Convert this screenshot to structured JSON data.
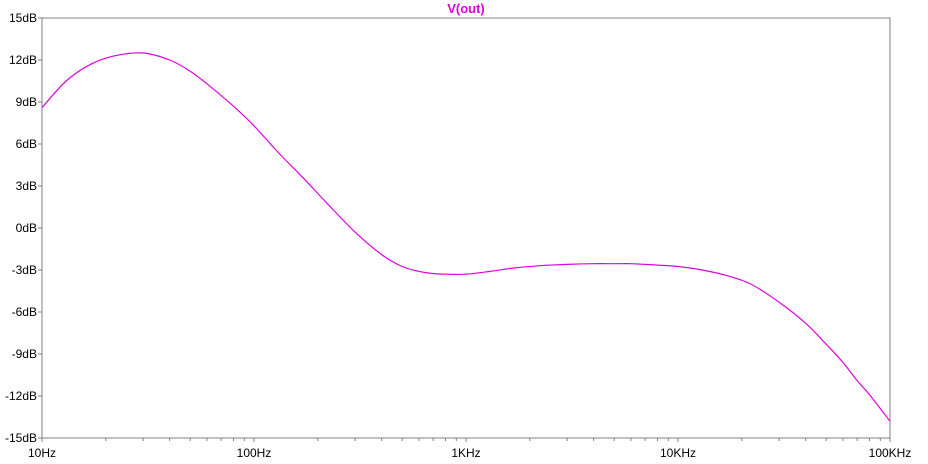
{
  "chart_data": {
    "type": "line",
    "title": "V(out)",
    "xlabel": "",
    "ylabel": "",
    "x_scale": "log",
    "xlim": [
      10,
      100000
    ],
    "ylim": [
      -15,
      15
    ],
    "grid": false,
    "x_ticks": [
      {
        "value": 10,
        "label": "10Hz"
      },
      {
        "value": 100,
        "label": "100Hz"
      },
      {
        "value": 1000,
        "label": "1KHz"
      },
      {
        "value": 10000,
        "label": "10KHz"
      },
      {
        "value": 100000,
        "label": "100KHz"
      }
    ],
    "y_ticks": [
      {
        "value": 15,
        "label": "15dB"
      },
      {
        "value": 12,
        "label": "12dB"
      },
      {
        "value": 9,
        "label": "9dB"
      },
      {
        "value": 6,
        "label": "6dB"
      },
      {
        "value": 3,
        "label": "3dB"
      },
      {
        "value": 0,
        "label": "0dB"
      },
      {
        "value": -3,
        "label": "-3dB"
      },
      {
        "value": -6,
        "label": "-6dB"
      },
      {
        "value": -9,
        "label": "-9dB"
      },
      {
        "value": -12,
        "label": "-12dB"
      },
      {
        "value": -15,
        "label": "-15dB"
      }
    ],
    "series": [
      {
        "name": "V(out)",
        "color": "#e000e0",
        "x": [
          10,
          13,
          17,
          22,
          30,
          40,
          50,
          60,
          80,
          100,
          130,
          170,
          220,
          300,
          400,
          500,
          600,
          700,
          800,
          1000,
          1300,
          1700,
          2200,
          3000,
          4000,
          5000,
          6000,
          7000,
          8000,
          10000,
          13000,
          17000,
          22000,
          30000,
          40000,
          50000,
          60000,
          70000,
          80000,
          100000
        ],
        "y": [
          8.6,
          10.5,
          11.7,
          12.3,
          12.5,
          12.0,
          11.2,
          10.3,
          8.7,
          7.3,
          5.4,
          3.6,
          1.8,
          -0.3,
          -1.9,
          -2.75,
          -3.1,
          -3.25,
          -3.3,
          -3.3,
          -3.1,
          -2.85,
          -2.7,
          -2.6,
          -2.55,
          -2.55,
          -2.55,
          -2.6,
          -2.65,
          -2.75,
          -3.0,
          -3.4,
          -4.0,
          -5.3,
          -6.8,
          -8.3,
          -9.6,
          -10.9,
          -11.9,
          -13.8
        ]
      }
    ]
  }
}
